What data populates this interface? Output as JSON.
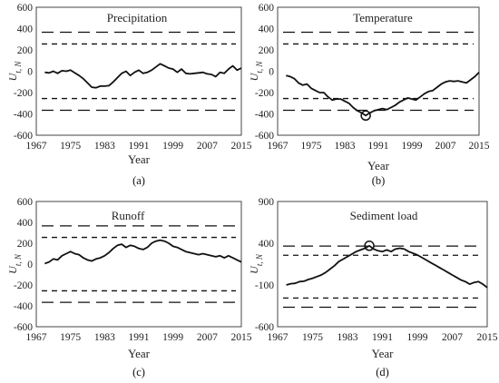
{
  "figure": {
    "ylabel_main": "U",
    "ylabel_sub": "t, N"
  },
  "chart_data": [
    {
      "type": "line",
      "title": "Precipitation",
      "caption": "(a)",
      "xlabel": "Year",
      "x_ticks": [
        "1967",
        "1975",
        "1983",
        "1991",
        "1999",
        "2007",
        "2015"
      ],
      "y_ticks": [
        "600",
        "400",
        "200",
        "0",
        "-200",
        "-400",
        "-600"
      ],
      "xlim": [
        1967,
        2015
      ],
      "ylim": [
        -600,
        600
      ],
      "critical_95": [
        -256,
        256
      ],
      "critical_99": [
        -366,
        366
      ],
      "x": [
        1969,
        1970,
        1971,
        1972,
        1973,
        1974,
        1975,
        1976,
        1977,
        1978,
        1979,
        1980,
        1981,
        1982,
        1983,
        1984,
        1985,
        1986,
        1987,
        1988,
        1989,
        1990,
        1991,
        1992,
        1993,
        1994,
        1995,
        1996,
        1997,
        1998,
        1999,
        2000,
        2001,
        2002,
        2003,
        2004,
        2005,
        2006,
        2007,
        2008,
        2009,
        2010,
        2011,
        2012,
        2013,
        2014,
        2015
      ],
      "series": [
        {
          "values": [
            -10,
            -15,
            0,
            -20,
            5,
            0,
            10,
            -15,
            -40,
            -70,
            -110,
            -150,
            -155,
            -140,
            -140,
            -135,
            -100,
            -60,
            -20,
            0,
            -40,
            -10,
            10,
            -20,
            -10,
            10,
            40,
            70,
            50,
            30,
            20,
            -10,
            20,
            -20,
            -25,
            -20,
            -15,
            -10,
            -25,
            -30,
            -50,
            -10,
            -20,
            20,
            50,
            10,
            30
          ]
        }
      ]
    },
    {
      "type": "line",
      "title": "Temperature",
      "caption": "(b)",
      "xlabel": "Year",
      "x_ticks": [
        "1967",
        "1975",
        "1983",
        "1991",
        "1999",
        "2007",
        "2015"
      ],
      "y_ticks": [
        "600",
        "400",
        "200",
        "0",
        "-200",
        "-400",
        "-600"
      ],
      "xlim": [
        1967,
        2015
      ],
      "ylim": [
        -600,
        600
      ],
      "critical_95": [
        -256,
        256
      ],
      "critical_99": [
        -366,
        366
      ],
      "marker": {
        "x": 1988,
        "y": -415
      },
      "x": [
        1969,
        1970,
        1971,
        1972,
        1973,
        1974,
        1975,
        1976,
        1977,
        1978,
        1979,
        1980,
        1981,
        1982,
        1983,
        1984,
        1985,
        1986,
        1987,
        1988,
        1989,
        1990,
        1991,
        1992,
        1993,
        1994,
        1995,
        1996,
        1997,
        1998,
        1999,
        2000,
        2001,
        2002,
        2003,
        2004,
        2005,
        2006,
        2007,
        2008,
        2009,
        2010,
        2011,
        2012,
        2013,
        2014,
        2015
      ],
      "series": [
        {
          "values": [
            -40,
            -50,
            -70,
            -110,
            -130,
            -120,
            -160,
            -180,
            -200,
            -200,
            -240,
            -270,
            -260,
            -260,
            -280,
            -300,
            -340,
            -370,
            -390,
            -415,
            -390,
            -370,
            -360,
            -350,
            -360,
            -340,
            -320,
            -290,
            -270,
            -250,
            -260,
            -270,
            -240,
            -210,
            -190,
            -180,
            -150,
            -120,
            -100,
            -90,
            -95,
            -90,
            -100,
            -110,
            -80,
            -50,
            -10
          ]
        }
      ]
    },
    {
      "type": "line",
      "title": "Runoff",
      "caption": "(c)",
      "xlabel": "Year",
      "x_ticks": [
        "1967",
        "1975",
        "1983",
        "1991",
        "1999",
        "2007",
        "2015"
      ],
      "y_ticks": [
        "600",
        "400",
        "200",
        "0",
        "-200",
        "-400",
        "-600"
      ],
      "xlim": [
        1967,
        2015
      ],
      "ylim": [
        -600,
        600
      ],
      "critical_95": [
        -256,
        256
      ],
      "critical_99": [
        -366,
        366
      ],
      "x": [
        1969,
        1970,
        1971,
        1972,
        1973,
        1974,
        1975,
        1976,
        1977,
        1978,
        1979,
        1980,
        1981,
        1982,
        1983,
        1984,
        1985,
        1986,
        1987,
        1988,
        1989,
        1990,
        1991,
        1992,
        1993,
        1994,
        1995,
        1996,
        1997,
        1998,
        1999,
        2000,
        2001,
        2002,
        2003,
        2004,
        2005,
        2006,
        2007,
        2008,
        2009,
        2010,
        2011,
        2012,
        2013,
        2014,
        2015
      ],
      "series": [
        {
          "values": [
            5,
            20,
            50,
            40,
            80,
            100,
            120,
            100,
            90,
            60,
            40,
            30,
            50,
            60,
            80,
            110,
            150,
            180,
            190,
            160,
            180,
            170,
            150,
            140,
            160,
            200,
            220,
            230,
            220,
            200,
            170,
            160,
            140,
            120,
            110,
            100,
            90,
            100,
            90,
            80,
            70,
            80,
            60,
            80,
            60,
            40,
            20
          ]
        }
      ]
    },
    {
      "type": "line",
      "title": "Sediment load",
      "caption": "(d)",
      "xlabel": "Year",
      "x_ticks": [
        "1967",
        "1975",
        "1983",
        "1991",
        "1999",
        "2007",
        "2015"
      ],
      "y_ticks": [
        "900",
        "400",
        "-100",
        "-600"
      ],
      "xlim": [
        1967,
        2015
      ],
      "ylim": [
        -600,
        900
      ],
      "critical_95": [
        -256,
        256
      ],
      "critical_99": [
        -366,
        366
      ],
      "marker": {
        "x": 1988,
        "y": 370
      },
      "x": [
        1969,
        1970,
        1971,
        1972,
        1973,
        1974,
        1975,
        1976,
        1977,
        1978,
        1979,
        1980,
        1981,
        1982,
        1983,
        1984,
        1985,
        1986,
        1987,
        1988,
        1989,
        1990,
        1991,
        1992,
        1993,
        1994,
        1995,
        1996,
        1997,
        1998,
        1999,
        2000,
        2001,
        2002,
        2003,
        2004,
        2005,
        2006,
        2007,
        2008,
        2009,
        2010,
        2011,
        2012,
        2013,
        2014,
        2015
      ],
      "series": [
        {
          "values": [
            -100,
            -85,
            -80,
            -60,
            -55,
            -35,
            -20,
            0,
            20,
            50,
            90,
            130,
            180,
            210,
            240,
            270,
            300,
            320,
            340,
            370,
            330,
            310,
            300,
            320,
            300,
            330,
            340,
            330,
            300,
            280,
            260,
            230,
            200,
            170,
            140,
            110,
            80,
            50,
            20,
            -10,
            -40,
            -60,
            -90,
            -70,
            -60,
            -90,
            -130
          ]
        }
      ]
    }
  ]
}
